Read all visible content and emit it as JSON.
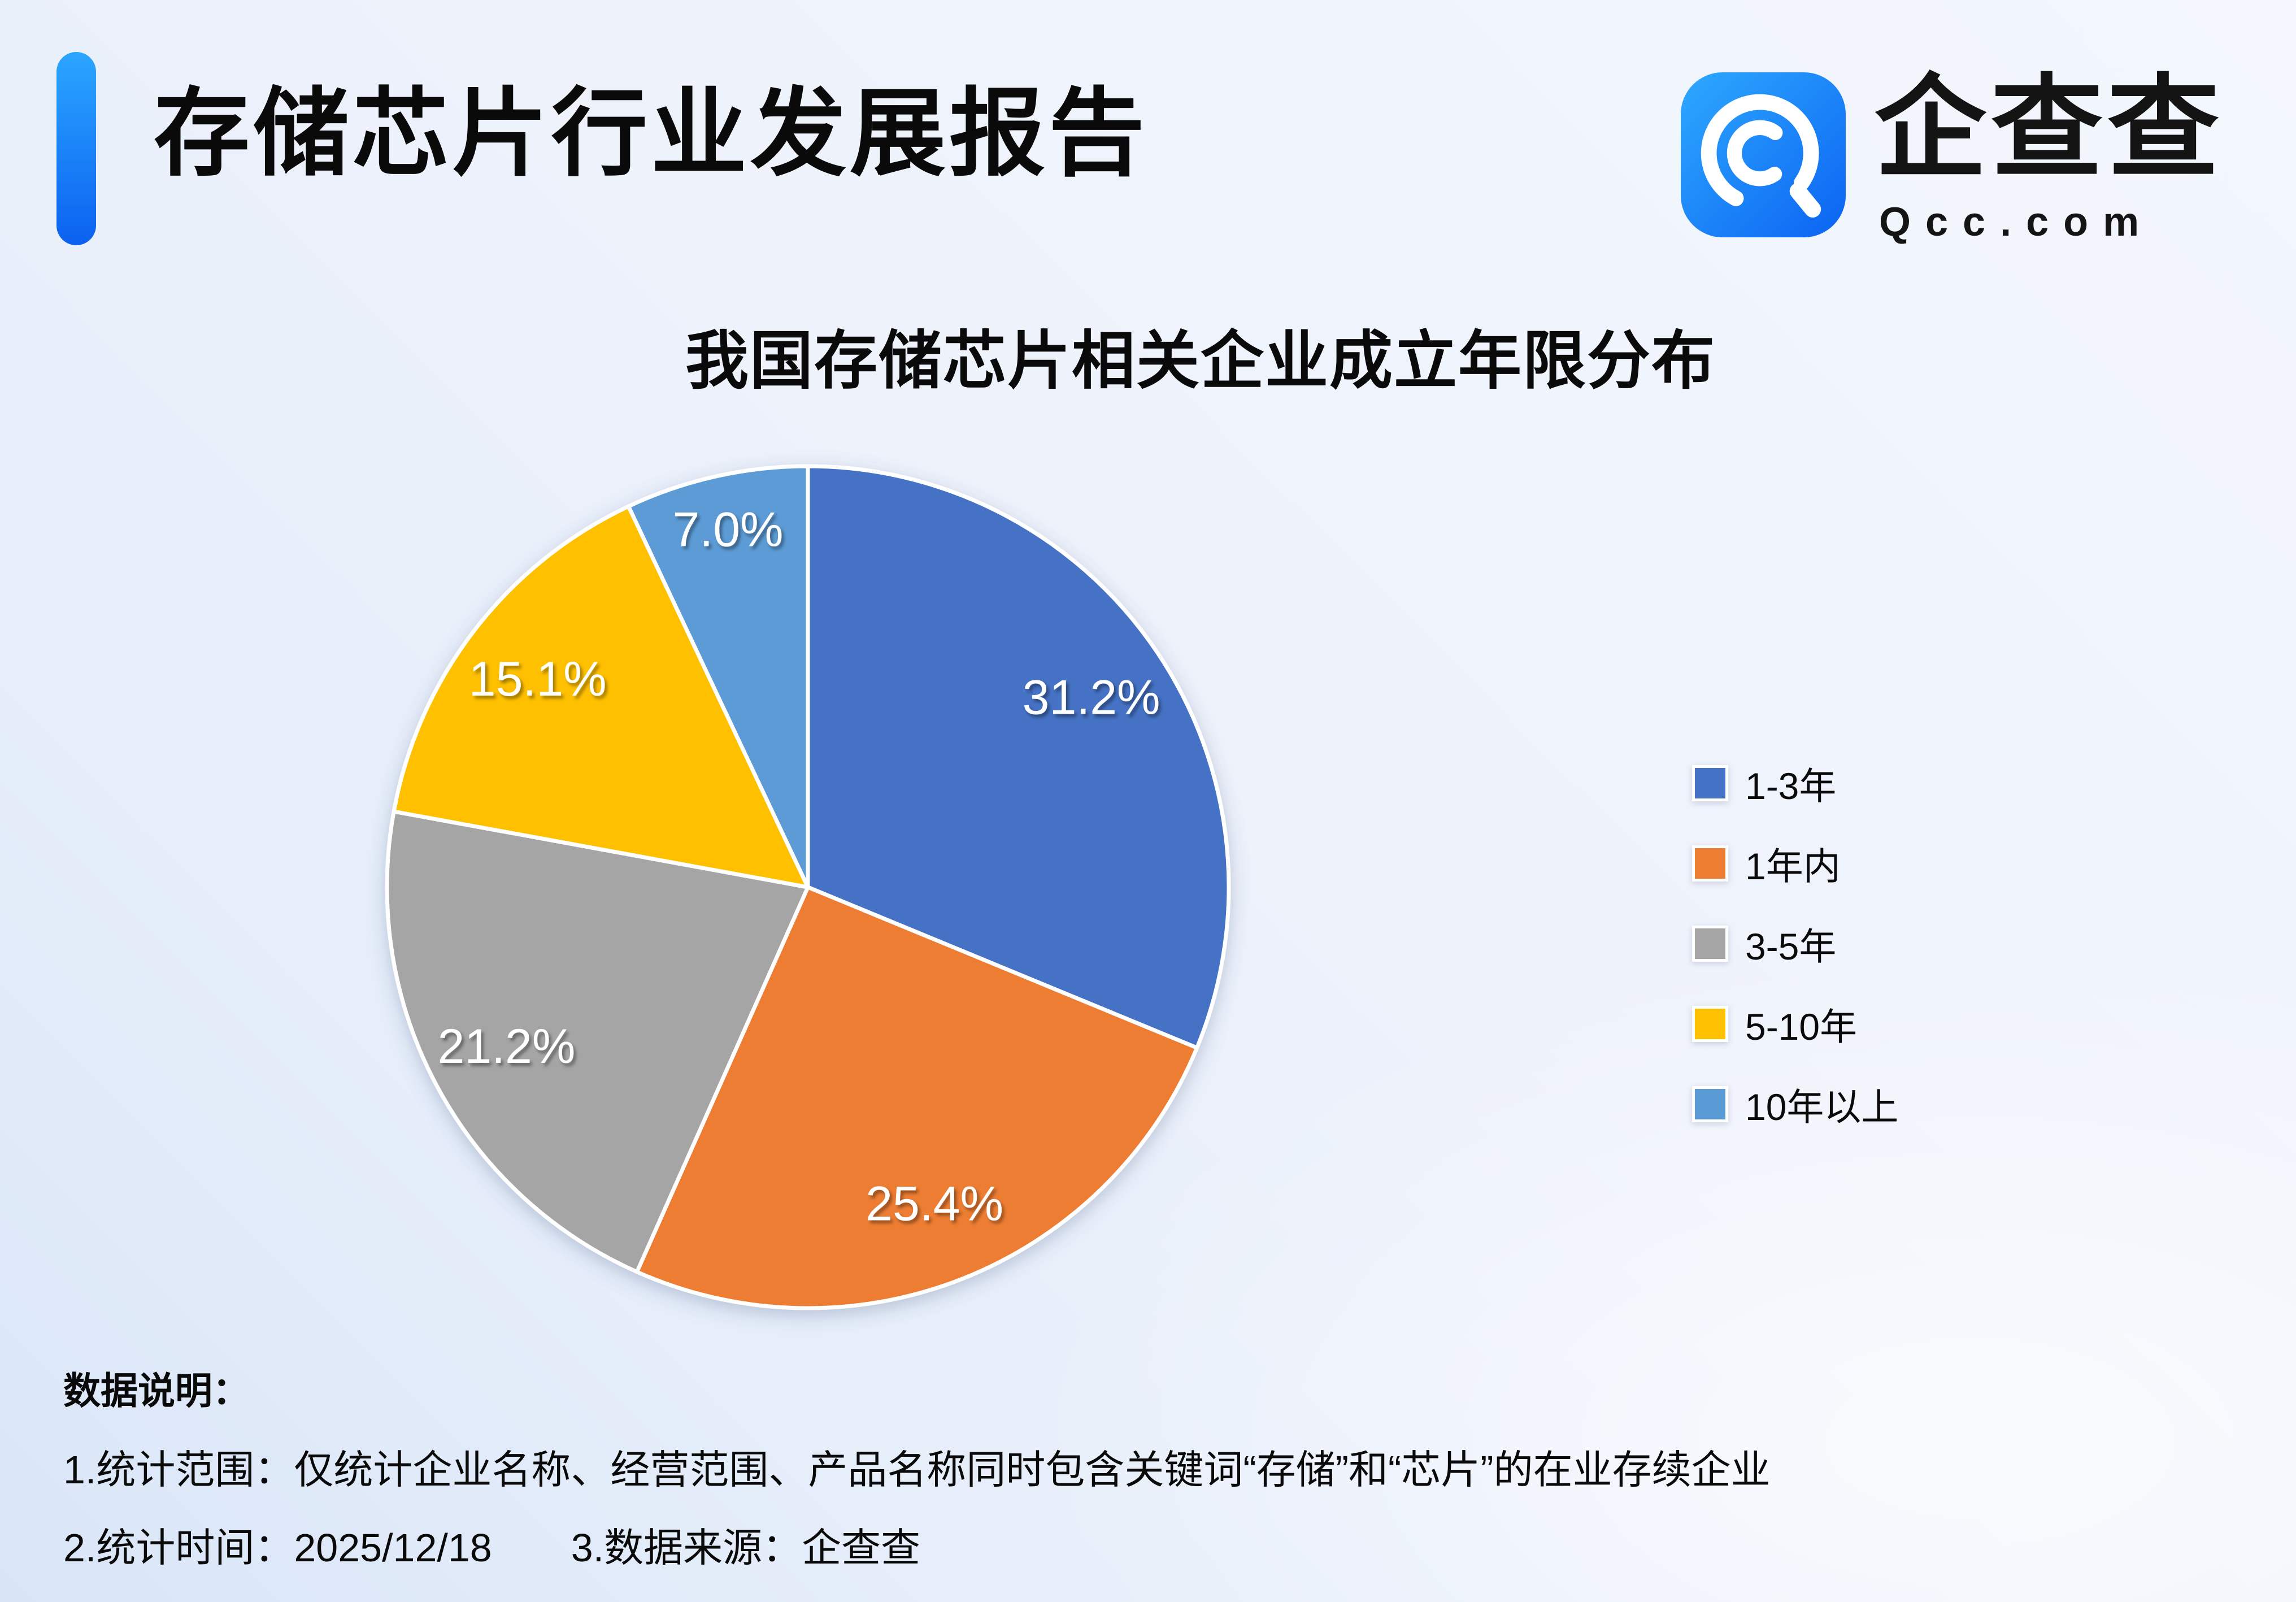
{
  "header": {
    "title": "存储芯片行业发展报告",
    "logo": {
      "brand_name": "企查查",
      "brand_domain": "Qcc.com"
    }
  },
  "chart_data": {
    "type": "pie",
    "title": "我国存储芯片相关企业成立年限分布",
    "series": [
      {
        "label": "1-3年",
        "value": 31.2,
        "display": "31.2%",
        "color": "#4472C4"
      },
      {
        "label": "1年内",
        "value": 25.4,
        "display": "25.4%",
        "color": "#ED7D31"
      },
      {
        "label": "3-5年",
        "value": 21.2,
        "display": "21.2%",
        "color": "#A5A5A5"
      },
      {
        "label": "5-10年",
        "value": 15.1,
        "display": "15.1%",
        "color": "#FFC000"
      },
      {
        "label": "10年以上",
        "value": 7.0,
        "display": "7.0%",
        "color": "#5B9BD5"
      }
    ],
    "start_angle_deg": 0,
    "direction": "clockwise",
    "data_label_color": "#FFFFFF",
    "legend_position": "right",
    "legend_order": [
      "1-3年",
      "1年内",
      "3-5年",
      "5-10年",
      "10年以上"
    ]
  },
  "footer": {
    "heading": "数据说明：",
    "notes": [
      "1.统计范围：仅统计企业名称、经营范围、产品名称同时包含关键词“存储”和“芯片”的在业存续企业",
      "2.统计时间：2025/12/18　　3.数据来源：企查查"
    ]
  },
  "colors": {
    "accent_bar_top": "#2BA6FF",
    "accent_bar_bottom": "#0B61F0",
    "logo_blue_light": "#2EA9FF",
    "logo_blue_dark": "#0B63F2",
    "title_text": "#0A0A0A",
    "background_light": "#F3F7FD",
    "background_dark": "#D9E5F7"
  }
}
